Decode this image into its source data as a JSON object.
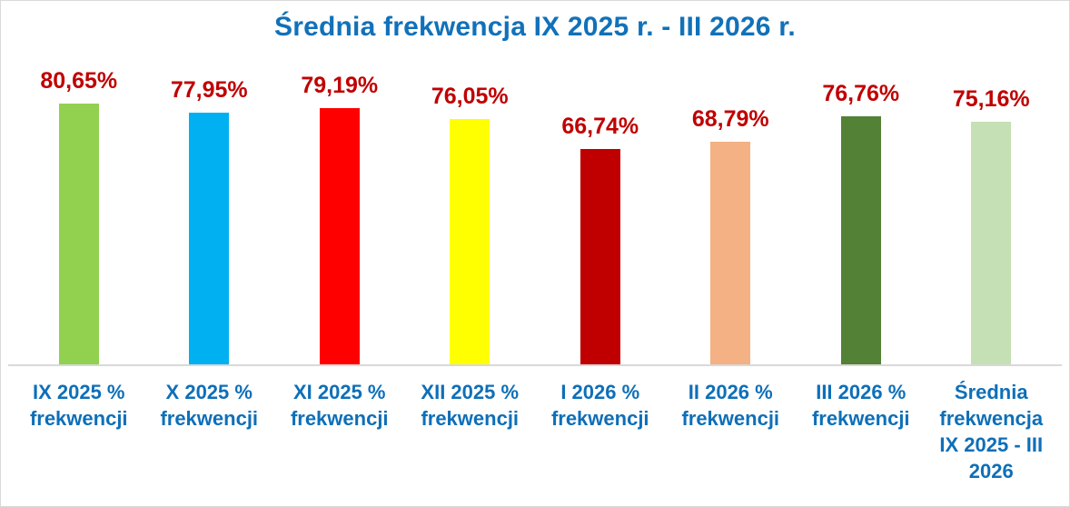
{
  "chart_data": {
    "type": "bar",
    "title": "Średnia frekwencja IX 2025 r. - III 2026 r.",
    "categories": [
      "IX 2025 %\nfrekwencji",
      "X 2025 %\nfrekwencji",
      "XI 2025 %\nfrekwencji",
      "XII 2025 %\nfrekwencji",
      "I 2026 %\nfrekwencji",
      "II 2026 %\nfrekwencji",
      "III 2026 %\nfrekwencji",
      "Średnia\nfrekwencja\nIX 2025 - III\n2026"
    ],
    "values": [
      80.65,
      77.95,
      79.19,
      76.05,
      66.74,
      68.79,
      76.76,
      75.16
    ],
    "value_labels": [
      "80,65%",
      "77,95%",
      "79,19%",
      "76,05%",
      "66,74%",
      "68,79%",
      "76,76%",
      "75,16%"
    ],
    "bar_colors": [
      "#92d050",
      "#00b0f0",
      "#ff0000",
      "#ffff00",
      "#c00000",
      "#f4b183",
      "#538135",
      "#c5e0b4"
    ],
    "xlabel": "",
    "ylabel": "",
    "ylim": [
      0,
      100
    ],
    "grid": false,
    "legend_position": "none",
    "y_axis_visible": false,
    "data_labels": "above-bars"
  },
  "colors": {
    "title": "#1171b9",
    "value_label": "#c00000",
    "category_label": "#0e6fb8",
    "axis_line": "#d9d9d9",
    "border": "#d9d9d9",
    "background": "#ffffff"
  }
}
